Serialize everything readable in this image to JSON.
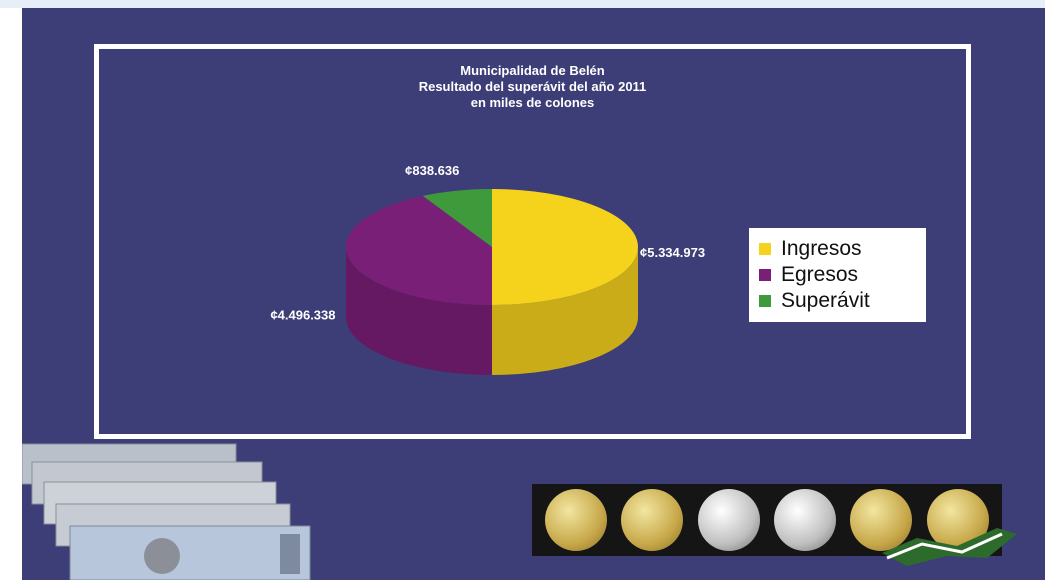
{
  "chart_data": {
    "type": "pie",
    "title": "Municipalidad de Belén",
    "subtitle_lines": [
      "Resultado del superávit del año 2011",
      "en miles de colones"
    ],
    "slices": [
      {
        "label": "Ingresos",
        "value": 5334973,
        "display": "¢5.334.973",
        "color": "#f5d21c"
      },
      {
        "label": "Egresos",
        "value": 4496338,
        "display": "¢4.496.338",
        "color": "#7a1f78"
      },
      {
        "label": "Superávit",
        "value": 838636,
        "display": "¢838.636",
        "color": "#3f9a3c"
      }
    ],
    "legend": {
      "placement": "right",
      "items": [
        "Ingresos",
        "Egresos",
        "Superávit"
      ]
    },
    "style": "3d"
  },
  "colors": {
    "background": "#3d3d78",
    "frame": "#ffffff"
  },
  "decorations": [
    "banknotes-image",
    "coins-image",
    "flag-image"
  ]
}
